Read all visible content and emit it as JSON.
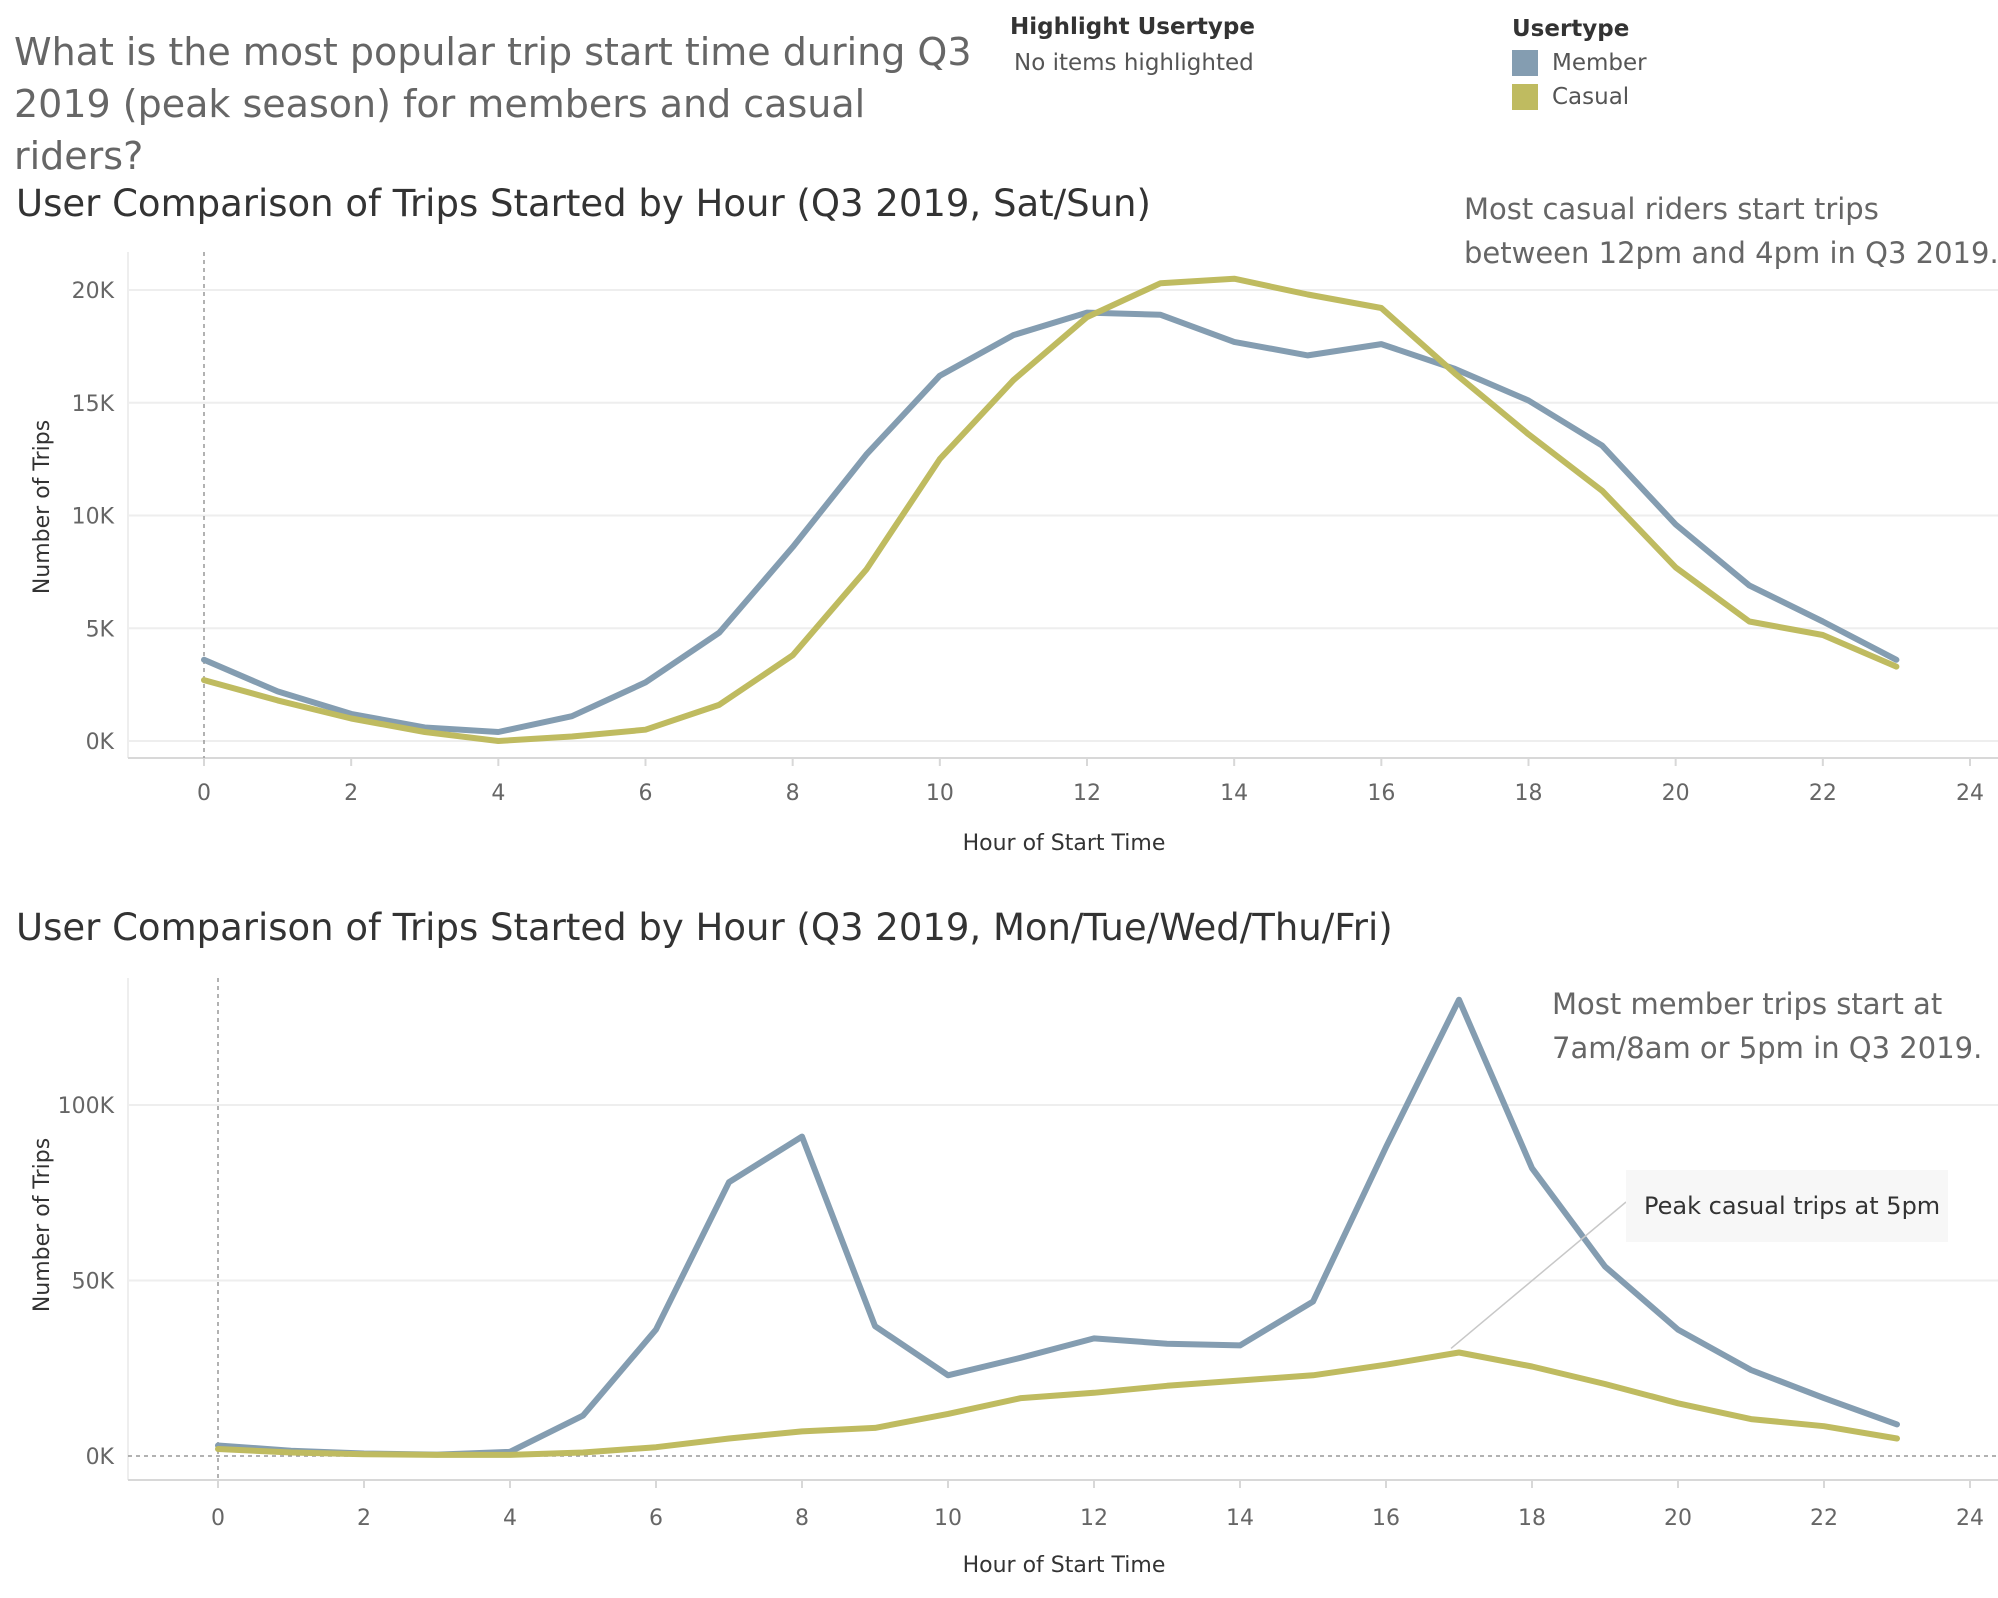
{
  "question": "What is the most popular trip start time during Q3 2019 (peak season) for members and casual riders?",
  "highlight": {
    "title": "Highlight Usertype",
    "value": "No items highlighted"
  },
  "legend": {
    "title": "Usertype",
    "items": [
      {
        "label": "Member",
        "color": "#849db1"
      },
      {
        "label": "Casual",
        "color": "#bfbb60"
      }
    ]
  },
  "chart_data": [
    {
      "type": "line",
      "title": "User Comparison of Trips Started by Hour (Q3 2019, Sat/Sun)",
      "xlabel": "Hour of Start Time",
      "ylabel": "Number of Trips",
      "xlim": [
        0,
        24
      ],
      "ylim": [
        0,
        20000
      ],
      "x_ticks": [
        "0",
        "2",
        "4",
        "6",
        "8",
        "10",
        "12",
        "14",
        "16",
        "18",
        "20",
        "22",
        "24"
      ],
      "y_ticks": [
        "0K",
        "5K",
        "10K",
        "15K",
        "20K"
      ],
      "x": [
        0,
        1,
        2,
        3,
        4,
        5,
        6,
        7,
        8,
        9,
        10,
        11,
        12,
        13,
        14,
        15,
        16,
        17,
        18,
        19,
        20,
        21,
        22,
        23
      ],
      "series": [
        {
          "name": "Member",
          "color": "#849db1",
          "values": [
            3600,
            2200,
            1200,
            600,
            400,
            1100,
            2600,
            4800,
            8600,
            12700,
            16200,
            18000,
            19000,
            18900,
            17700,
            17100,
            17600,
            16500,
            15100,
            13100,
            9600,
            6900,
            5300,
            3600
          ]
        },
        {
          "name": "Casual",
          "color": "#bfbb60",
          "values": [
            2700,
            1800,
            1000,
            400,
            0,
            200,
            500,
            1600,
            3800,
            7600,
            12500,
            16000,
            18800,
            20300,
            20500,
            19800,
            19200,
            16300,
            13600,
            11100,
            7700,
            5300,
            4700,
            3300
          ]
        }
      ],
      "grid": true,
      "annotation": [
        "Most casual riders start trips",
        "between 12pm and 4pm in Q3 2019."
      ]
    },
    {
      "type": "line",
      "title": "User Comparison of Trips Started by Hour (Q3 2019, Mon/Tue/Wed/Thu/Fri)",
      "xlabel": "Hour of Start Time",
      "ylabel": "Number of Trips",
      "xlim": [
        0,
        24
      ],
      "ylim": [
        0,
        130000
      ],
      "x_ticks": [
        "0",
        "2",
        "4",
        "6",
        "8",
        "10",
        "12",
        "14",
        "16",
        "18",
        "20",
        "22",
        "24"
      ],
      "y_ticks": [
        "0K",
        "50K",
        "100K"
      ],
      "x": [
        0,
        1,
        2,
        3,
        4,
        5,
        6,
        7,
        8,
        9,
        10,
        11,
        12,
        13,
        14,
        15,
        16,
        17,
        18,
        19,
        20,
        21,
        22,
        23
      ],
      "series": [
        {
          "name": "Member",
          "color": "#849db1",
          "values": [
            3000,
            1500,
            700,
            400,
            1200,
            11500,
            36000,
            78000,
            91000,
            37000,
            23000,
            28000,
            33500,
            32000,
            31500,
            44000,
            88000,
            130000,
            82000,
            54000,
            36000,
            24500,
            16500,
            9000
          ]
        },
        {
          "name": "Casual",
          "color": "#bfbb60",
          "values": [
            2000,
            1000,
            500,
            300,
            300,
            1000,
            2500,
            5000,
            7000,
            8000,
            12000,
            16500,
            18000,
            20000,
            21500,
            23000,
            26000,
            29500,
            25500,
            20500,
            15000,
            10500,
            8500,
            5000
          ]
        }
      ],
      "grid": true,
      "annotation": [
        "Most member trips start at",
        "7am/8am or 5pm in Q3 2019."
      ],
      "callout": {
        "text": "Peak casual trips at 5pm",
        "x": 17,
        "y": 29500
      }
    }
  ]
}
